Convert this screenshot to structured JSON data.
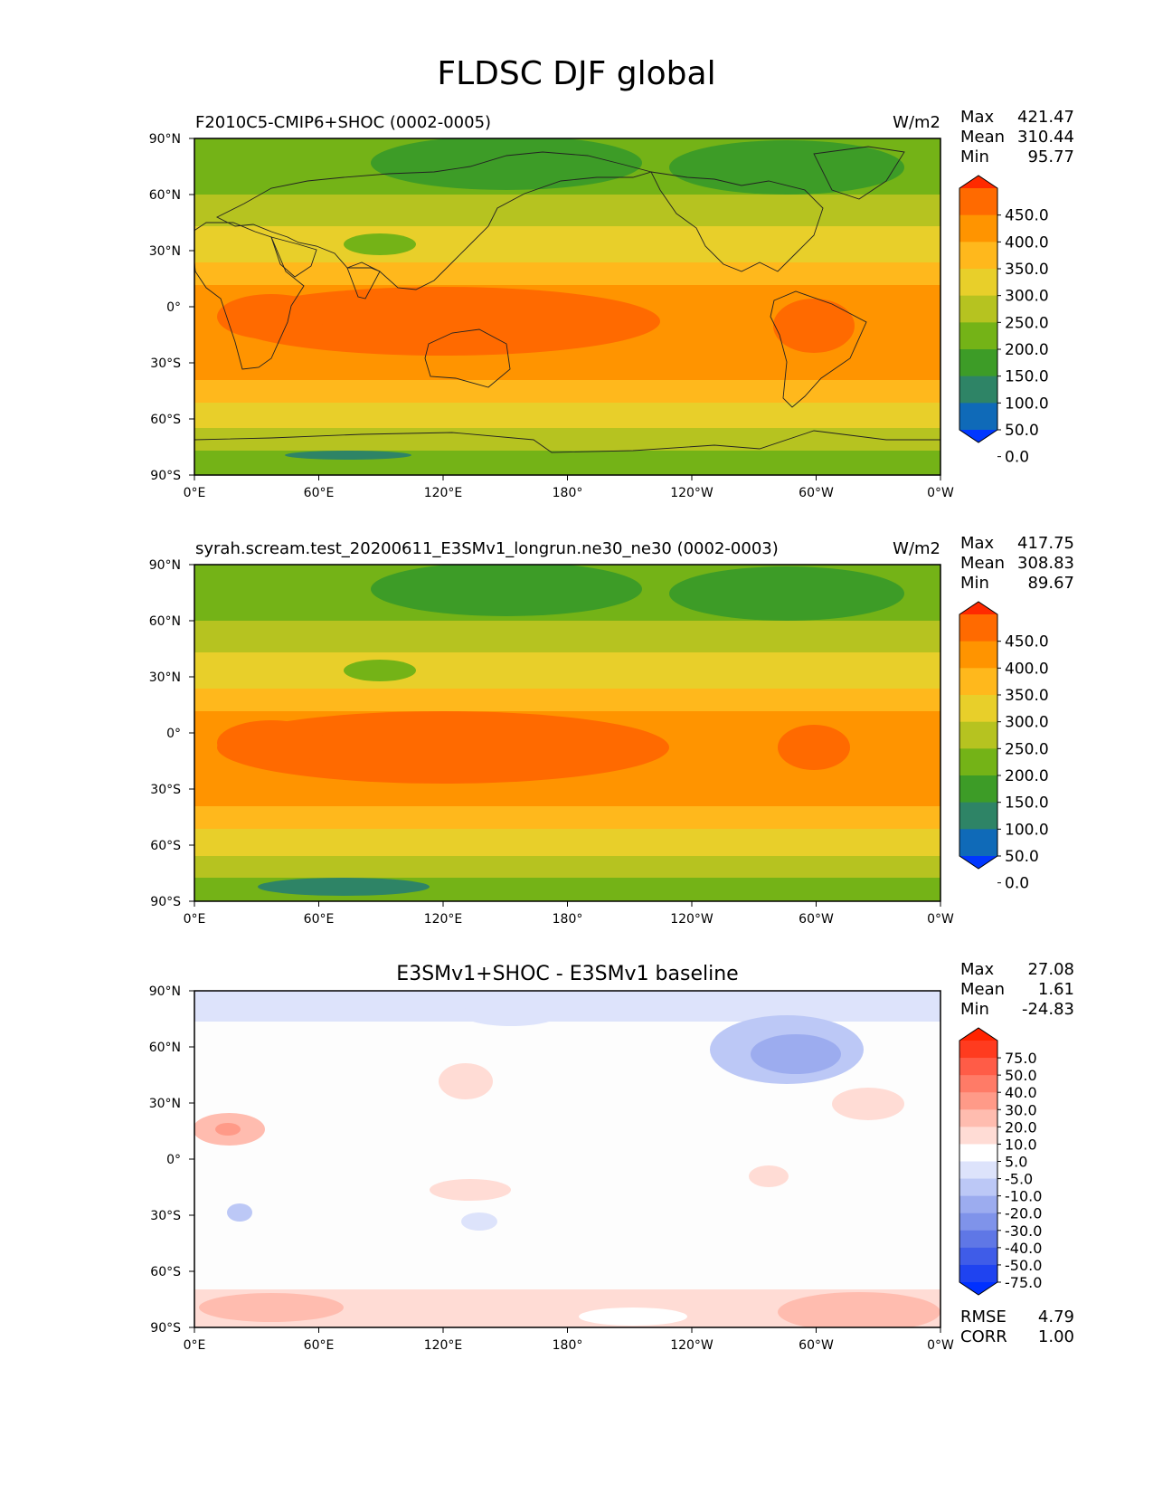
{
  "figure": {
    "title": "FLDSC DJF global"
  },
  "axes": {
    "lat_ticks": [
      "90°N",
      "60°N",
      "30°N",
      "0°",
      "30°S",
      "60°S",
      "90°S"
    ],
    "lon_ticks": [
      "0°E",
      "60°E",
      "120°E",
      "180°",
      "120°W",
      "60°W",
      "0°W"
    ]
  },
  "panels": [
    {
      "id": "test",
      "left_title": "F2010C5-CMIP6+SHOC (0002-0005)",
      "center_title": "",
      "units": "W/m2",
      "stats": [
        {
          "label": "Max",
          "value": "421.47"
        },
        {
          "label": "Mean",
          "value": "310.44"
        },
        {
          "label": "Min",
          "value": "95.77"
        }
      ],
      "colorbar_ticks": [
        "450.0",
        "400.0",
        "350.0",
        "300.0",
        "250.0",
        "200.0",
        "150.0",
        "100.0",
        "50.0",
        "0.0"
      ],
      "colorbar_colors": [
        "#ff2a00",
        "#ff6a00",
        "#ff9400",
        "#ffb81c",
        "#e8cf2a",
        "#b6c320",
        "#74b317",
        "#3d9c27",
        "#2e8466",
        "#0f6ab8",
        "#0037ff"
      ],
      "footer_stats": []
    },
    {
      "id": "ref",
      "left_title": "syrah.scream.test_20200611_E3SMv1_longrun.ne30_ne30 (0002-0003)",
      "center_title": "",
      "units": "W/m2",
      "stats": [
        {
          "label": "Max",
          "value": "417.75"
        },
        {
          "label": "Mean",
          "value": "308.83"
        },
        {
          "label": "Min",
          "value": "89.67"
        }
      ],
      "colorbar_ticks": [
        "450.0",
        "400.0",
        "350.0",
        "300.0",
        "250.0",
        "200.0",
        "150.0",
        "100.0",
        "50.0",
        "0.0"
      ],
      "colorbar_colors": [
        "#ff2a00",
        "#ff6a00",
        "#ff9400",
        "#ffb81c",
        "#e8cf2a",
        "#b6c320",
        "#74b317",
        "#3d9c27",
        "#2e8466",
        "#0f6ab8",
        "#0037ff"
      ],
      "footer_stats": []
    },
    {
      "id": "diff",
      "left_title": "",
      "center_title": "E3SMv1+SHOC - E3SMv1 baseline",
      "units": "",
      "stats": [
        {
          "label": "Max",
          "value": "27.08"
        },
        {
          "label": "Mean",
          "value": "1.61"
        },
        {
          "label": "Min",
          "value": "-24.83"
        }
      ],
      "colorbar_ticks": [
        "75.0",
        "50.0",
        "40.0",
        "30.0",
        "20.0",
        "10.0",
        "5.0",
        "-5.0",
        "-10.0",
        "-20.0",
        "-30.0",
        "-40.0",
        "-50.0",
        "-75.0"
      ],
      "colorbar_colors": [
        "#ff2400",
        "#ff3b1f",
        "#ff5c47",
        "#ff7b67",
        "#ff9a88",
        "#ffbcaf",
        "#ffdcd5",
        "#ffffff",
        "#dde3fb",
        "#bcc8f6",
        "#9cacef",
        "#7f93ea",
        "#5f77e6",
        "#3f5ce8",
        "#1f43f0",
        "#0030ff"
      ],
      "footer_stats": [
        {
          "label": "RMSE",
          "value": "4.79"
        },
        {
          "label": "CORR",
          "value": "1.00"
        }
      ]
    }
  ],
  "chart_data": [
    {
      "type": "heatmap",
      "title": "F2010C5-CMIP6+SHOC (0002-0005)",
      "variable": "FLDSC",
      "season": "DJF",
      "units": "W/m2",
      "xlim": [
        0,
        360
      ],
      "ylim": [
        -90,
        90
      ],
      "levels": [
        0,
        50,
        100,
        150,
        200,
        250,
        300,
        350,
        400,
        450
      ],
      "lat": [
        90,
        75,
        60,
        45,
        30,
        15,
        0,
        -15,
        -30,
        -45,
        -60,
        -75,
        -90
      ],
      "zonal_mean_estimate": [
        150,
        165,
        185,
        220,
        285,
        345,
        370,
        385,
        340,
        300,
        255,
        205,
        150
      ],
      "max": 421.47,
      "mean": 310.44,
      "min": 95.77
    },
    {
      "type": "heatmap",
      "title": "syrah.scream.test_20200611_E3SMv1_longrun.ne30_ne30 (0002-0003)",
      "variable": "FLDSC",
      "season": "DJF",
      "units": "W/m2",
      "xlim": [
        0,
        360
      ],
      "ylim": [
        -90,
        90
      ],
      "levels": [
        0,
        50,
        100,
        150,
        200,
        250,
        300,
        350,
        400,
        450
      ],
      "lat": [
        90,
        75,
        60,
        45,
        30,
        15,
        0,
        -15,
        -30,
        -45,
        -60,
        -75,
        -90
      ],
      "zonal_mean_estimate": [
        148,
        163,
        183,
        218,
        282,
        343,
        368,
        382,
        338,
        298,
        252,
        200,
        145
      ],
      "max": 417.75,
      "mean": 308.83,
      "min": 89.67
    },
    {
      "type": "heatmap",
      "title": "E3SMv1+SHOC - E3SMv1 baseline",
      "variable": "FLDSC difference",
      "season": "DJF",
      "units": "W/m2",
      "xlim": [
        0,
        360
      ],
      "ylim": [
        -90,
        90
      ],
      "levels": [
        -75,
        -50,
        -40,
        -30,
        -20,
        -10,
        -5,
        5,
        10,
        20,
        30,
        40,
        50,
        75
      ],
      "lat": [
        90,
        75,
        60,
        45,
        30,
        15,
        0,
        -15,
        -30,
        -45,
        -60,
        -75,
        -90
      ],
      "zonal_mean_estimate": [
        -6,
        -4,
        -2,
        2,
        3,
        2,
        1,
        2,
        2,
        1,
        3,
        9,
        10
      ],
      "max": 27.08,
      "mean": 1.61,
      "min": -24.83,
      "rmse": 4.79,
      "corr": 1.0
    }
  ]
}
